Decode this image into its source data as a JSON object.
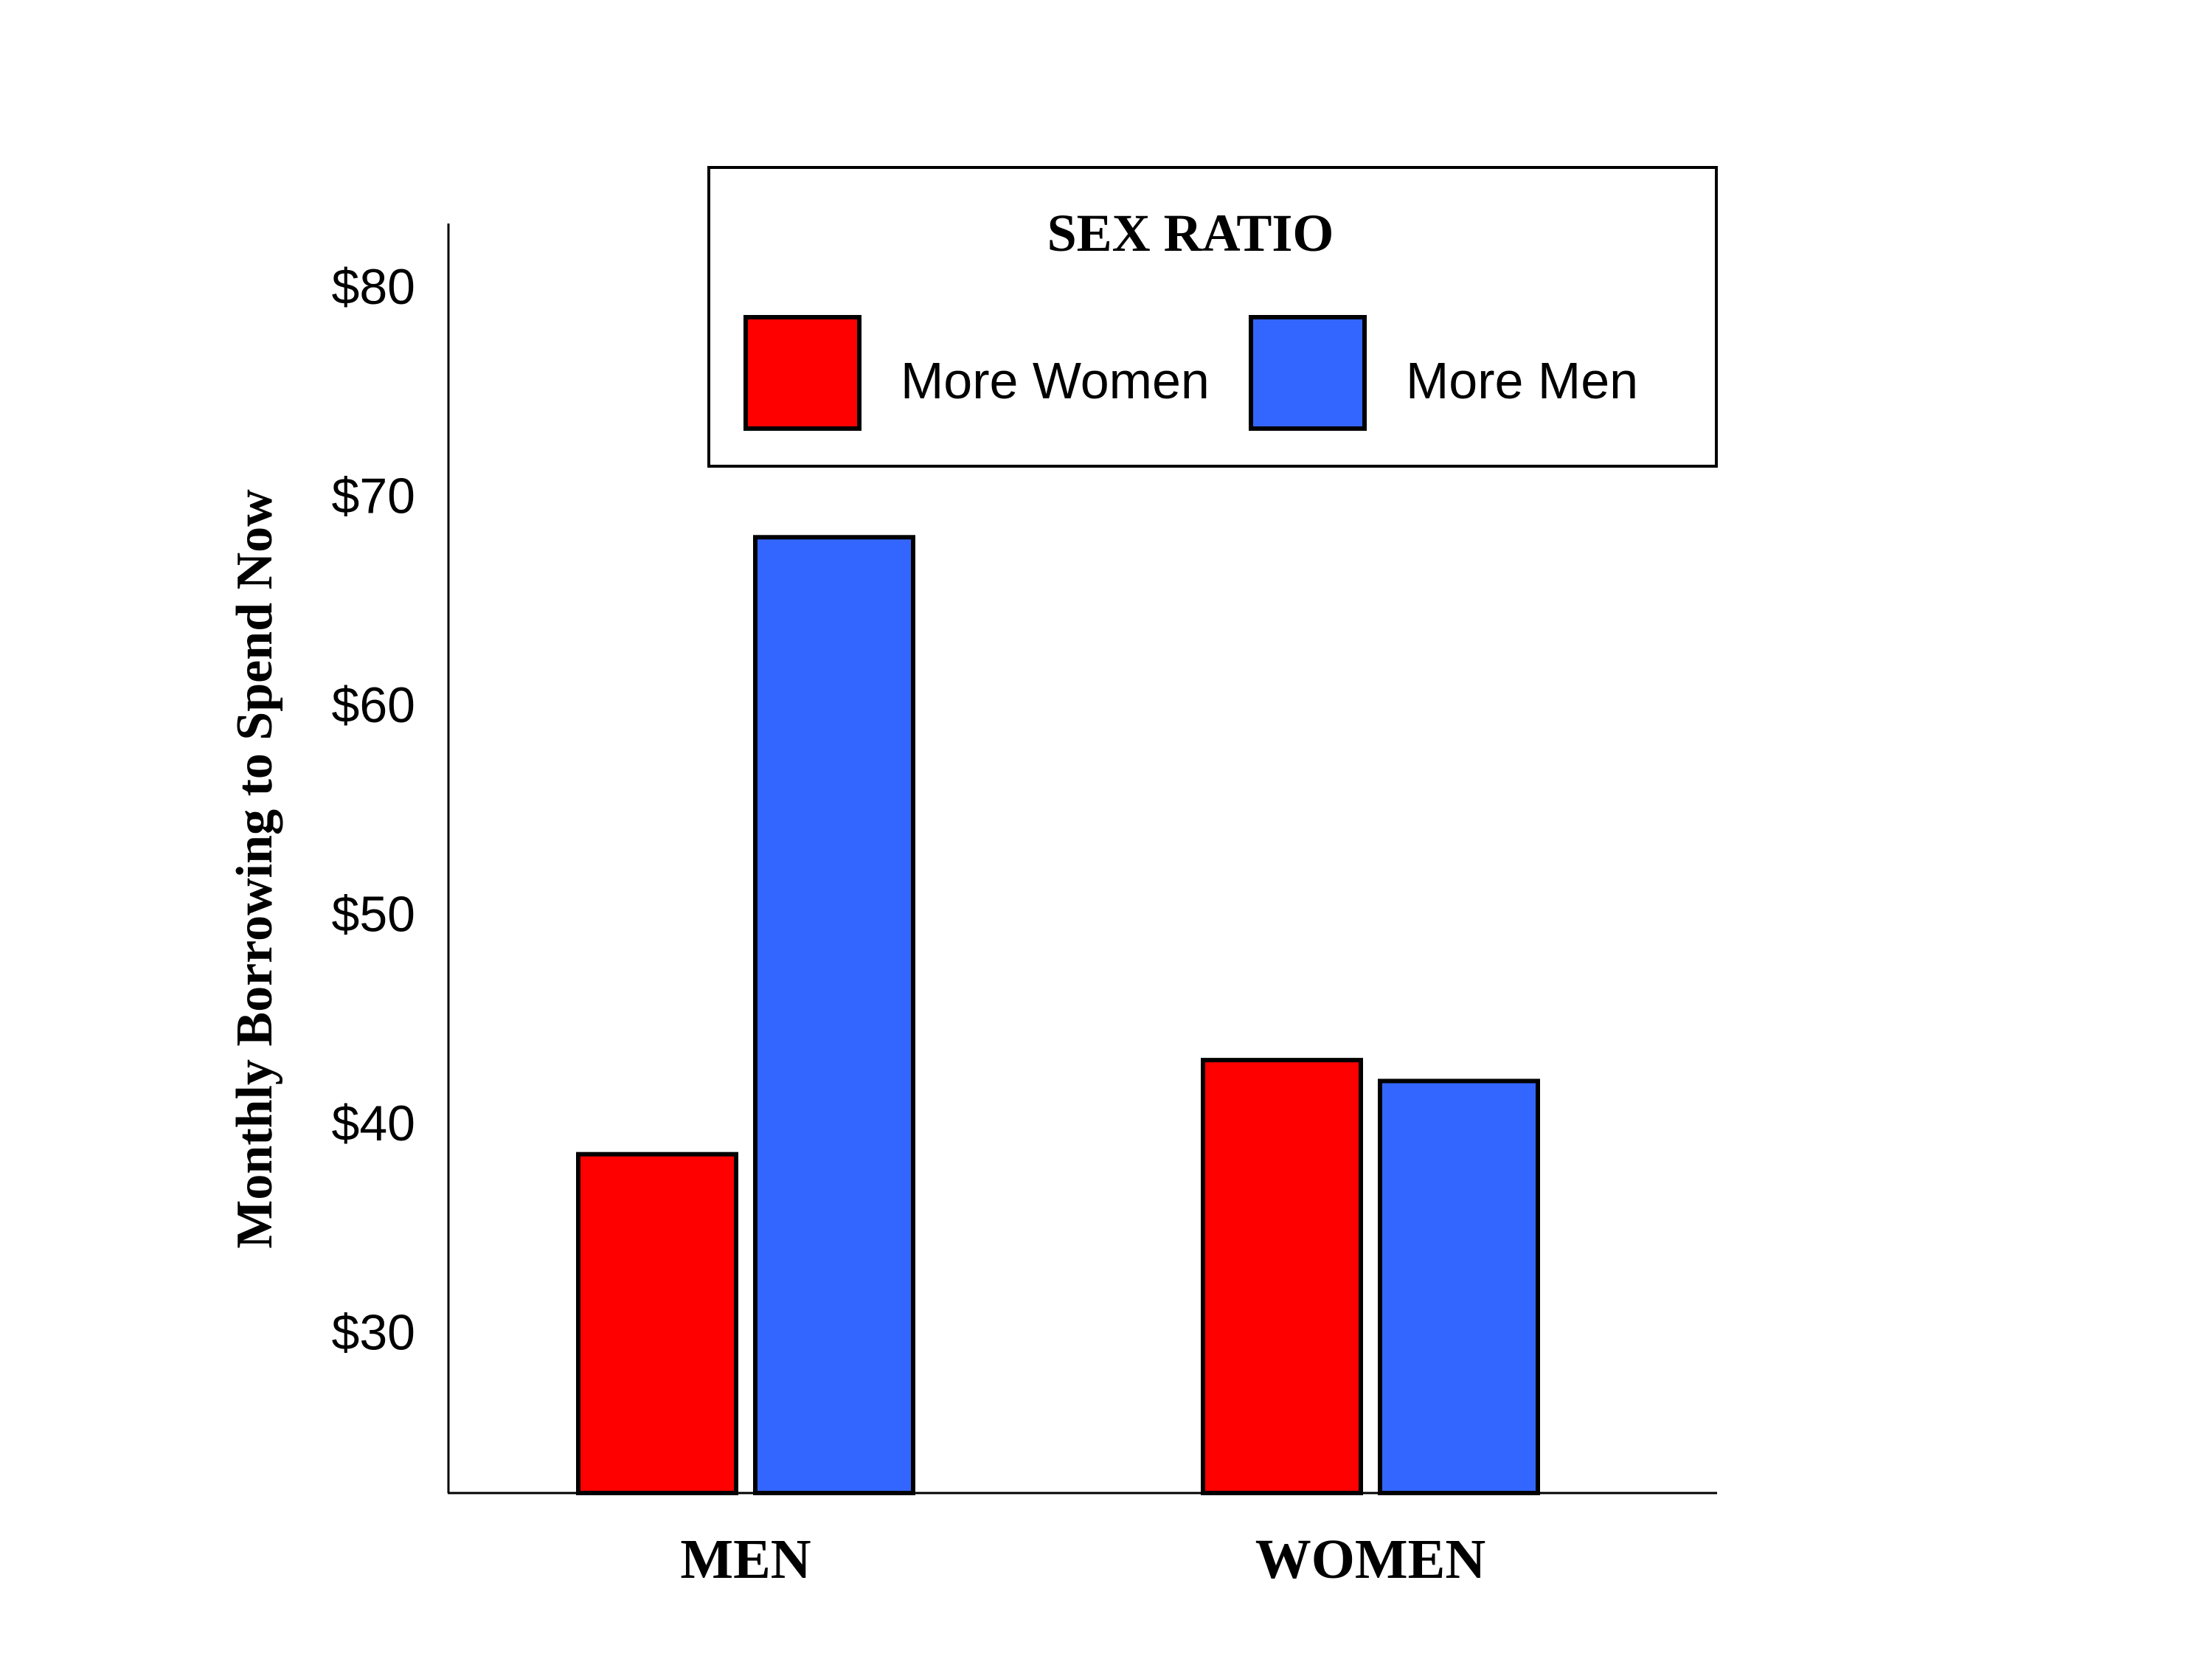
{
  "chart_data": {
    "type": "bar",
    "title": "",
    "xlabel": "",
    "ylabel": "Monthly Borrowing to Spend Now",
    "categories": [
      "MEN",
      "WOMEN"
    ],
    "series": [
      {
        "name": "More Women",
        "color": "#ff0000",
        "values": [
          38.5,
          43
        ]
      },
      {
        "name": "More Men",
        "color": "#3366ff",
        "values": [
          68,
          42
        ]
      }
    ],
    "ylim": [
      22.3,
      83
    ],
    "yticks": [
      30,
      40,
      50,
      60,
      70,
      80
    ],
    "ytick_labels": [
      "$30",
      "$40",
      "$50",
      "$60",
      "$70",
      "$80"
    ],
    "grid": false,
    "legend": {
      "title": "SEX RATIO",
      "position": "top-right"
    }
  }
}
